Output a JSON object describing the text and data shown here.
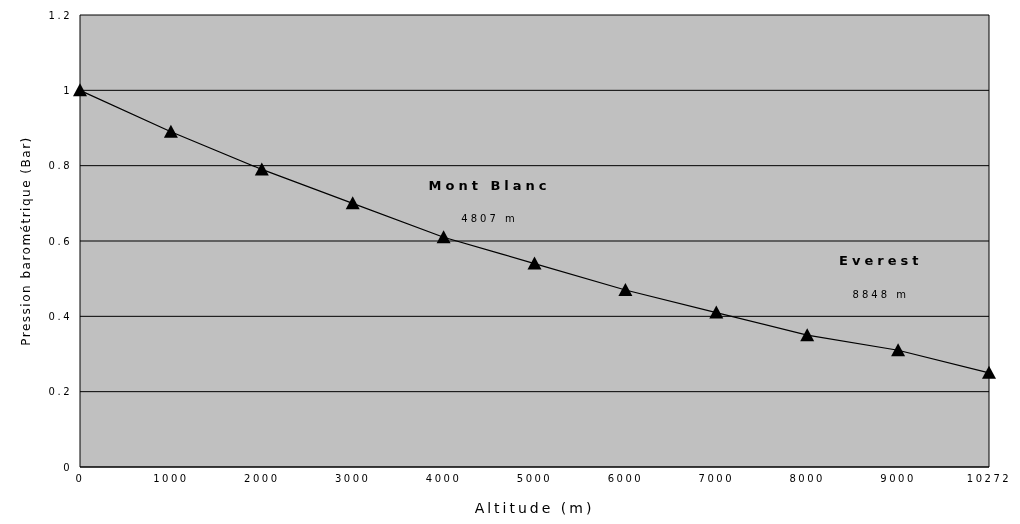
{
  "chart_data": {
    "type": "line",
    "xlabel": "Altitude (m)",
    "ylabel": "Pression barométrique (Bar)",
    "categories": [
      "0",
      "1000",
      "2000",
      "3000",
      "4000",
      "5000",
      "6000",
      "7000",
      "8000",
      "9000",
      "10272"
    ],
    "series": [
      {
        "color": "#000000",
        "values": [
          1,
          0.89,
          0.79,
          0.7,
          0.61,
          0.54,
          0.47,
          0.41,
          0.35,
          0.31,
          0.25
        ]
      }
    ],
    "ylim": [
      0,
      1.2
    ],
    "yticks": [
      0,
      0.2,
      0.4,
      0.6,
      0.8,
      1,
      1.2
    ],
    "grid": "y",
    "marker": "triangle",
    "line_style": "solid",
    "legend": false,
    "annotations": [
      "Mont Blanc",
      "4807 m",
      "Everest",
      "8848 m"
    ]
  }
}
